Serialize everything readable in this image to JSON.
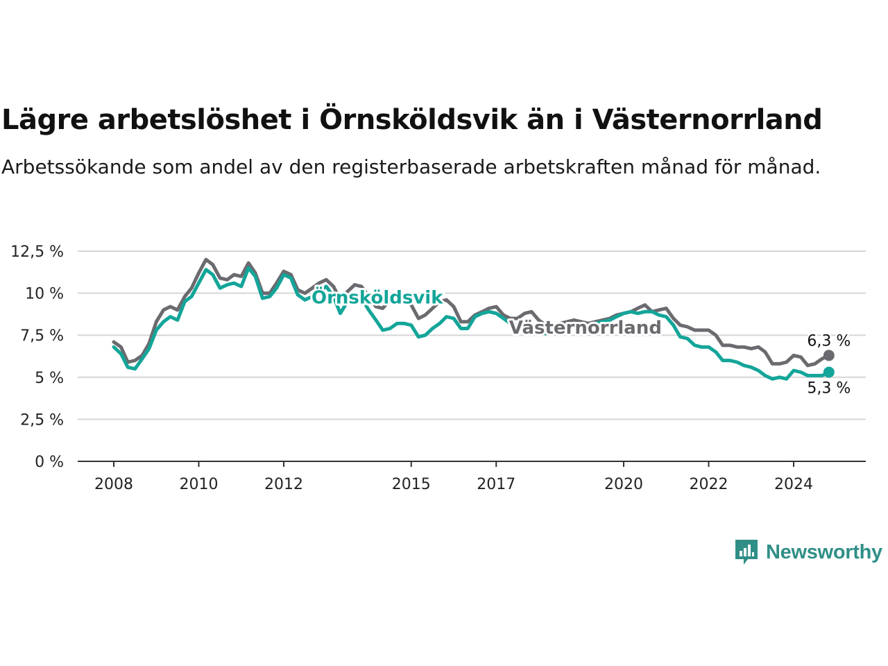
{
  "title": "Lägre arbetslöshet i Örnsköldsvik än i Västernorrland",
  "subtitle": "Arbetssökande som andel av den registerbaserade arbetskraften månad för månad.",
  "brand": {
    "name": "Newsworthy",
    "color": "#2f8f86"
  },
  "chart_data": {
    "type": "line",
    "y_ticks": [
      "0 %",
      "2,5 %",
      "5 %",
      "7,5 %",
      "10 %",
      "12,5 %"
    ],
    "y_tick_values": [
      0,
      2.5,
      5,
      7.5,
      10,
      12.5
    ],
    "x_ticks": [
      "2008",
      "2010",
      "2012",
      "2015",
      "2017",
      "2020",
      "2022",
      "2024"
    ],
    "x_tick_values": [
      2008,
      2010,
      2012,
      2015,
      2017,
      2020,
      2022,
      2024
    ],
    "ylim": [
      0,
      12.5
    ],
    "xlim": [
      2007.2,
      2025.7
    ],
    "grid": true,
    "series": [
      {
        "name": "Västernorrland",
        "color": "#6b6a6f",
        "end_label": "6,3 %",
        "points": [
          [
            2008.0,
            7.1
          ],
          [
            2008.17,
            6.8
          ],
          [
            2008.33,
            5.9
          ],
          [
            2008.5,
            6.0
          ],
          [
            2008.67,
            6.3
          ],
          [
            2008.83,
            7.0
          ],
          [
            2009.0,
            8.3
          ],
          [
            2009.17,
            9.0
          ],
          [
            2009.33,
            9.2
          ],
          [
            2009.5,
            9.0
          ],
          [
            2009.67,
            9.8
          ],
          [
            2009.83,
            10.3
          ],
          [
            2010.0,
            11.2
          ],
          [
            2010.17,
            12.0
          ],
          [
            2010.33,
            11.7
          ],
          [
            2010.5,
            10.9
          ],
          [
            2010.67,
            10.8
          ],
          [
            2010.83,
            11.1
          ],
          [
            2011.0,
            11.0
          ],
          [
            2011.17,
            11.8
          ],
          [
            2011.33,
            11.2
          ],
          [
            2011.5,
            10.0
          ],
          [
            2011.67,
            10.0
          ],
          [
            2011.83,
            10.6
          ],
          [
            2012.0,
            11.3
          ],
          [
            2012.17,
            11.1
          ],
          [
            2012.33,
            10.2
          ],
          [
            2012.5,
            10.0
          ],
          [
            2012.67,
            10.3
          ],
          [
            2012.83,
            10.6
          ],
          [
            2013.0,
            10.8
          ],
          [
            2013.17,
            10.4
          ],
          [
            2013.33,
            9.6
          ],
          [
            2013.5,
            10.1
          ],
          [
            2013.67,
            10.5
          ],
          [
            2013.83,
            10.4
          ],
          [
            2014.0,
            9.8
          ],
          [
            2014.17,
            9.2
          ],
          [
            2014.33,
            9.1
          ],
          [
            2014.5,
            9.6
          ],
          [
            2014.67,
            9.8
          ],
          [
            2014.83,
            9.6
          ],
          [
            2015.0,
            9.3
          ],
          [
            2015.17,
            8.5
          ],
          [
            2015.33,
            8.7
          ],
          [
            2015.5,
            9.1
          ],
          [
            2015.67,
            9.5
          ],
          [
            2015.83,
            9.6
          ],
          [
            2016.0,
            9.2
          ],
          [
            2016.17,
            8.3
          ],
          [
            2016.33,
            8.3
          ],
          [
            2016.5,
            8.7
          ],
          [
            2016.67,
            8.9
          ],
          [
            2016.83,
            9.1
          ],
          [
            2017.0,
            9.2
          ],
          [
            2017.17,
            8.7
          ],
          [
            2017.33,
            8.5
          ],
          [
            2017.5,
            8.5
          ],
          [
            2017.67,
            8.8
          ],
          [
            2017.83,
            8.9
          ],
          [
            2018.0,
            8.4
          ],
          [
            2018.17,
            8.1
          ],
          [
            2018.33,
            8.0
          ],
          [
            2018.5,
            8.2
          ],
          [
            2018.67,
            8.3
          ],
          [
            2018.83,
            8.4
          ],
          [
            2019.0,
            8.3
          ],
          [
            2019.17,
            8.2
          ],
          [
            2019.33,
            8.3
          ],
          [
            2019.5,
            8.4
          ],
          [
            2019.67,
            8.5
          ],
          [
            2019.83,
            8.7
          ],
          [
            2020.0,
            8.8
          ],
          [
            2020.17,
            8.9
          ],
          [
            2020.33,
            9.1
          ],
          [
            2020.5,
            9.3
          ],
          [
            2020.67,
            8.9
          ],
          [
            2020.83,
            9.0
          ],
          [
            2021.0,
            9.1
          ],
          [
            2021.17,
            8.5
          ],
          [
            2021.33,
            8.1
          ],
          [
            2021.5,
            8.0
          ],
          [
            2021.67,
            7.8
          ],
          [
            2021.83,
            7.8
          ],
          [
            2022.0,
            7.8
          ],
          [
            2022.17,
            7.5
          ],
          [
            2022.33,
            6.9
          ],
          [
            2022.5,
            6.9
          ],
          [
            2022.67,
            6.8
          ],
          [
            2022.83,
            6.8
          ],
          [
            2023.0,
            6.7
          ],
          [
            2023.17,
            6.8
          ],
          [
            2023.33,
            6.5
          ],
          [
            2023.5,
            5.8
          ],
          [
            2023.67,
            5.8
          ],
          [
            2023.83,
            5.9
          ],
          [
            2024.0,
            6.3
          ],
          [
            2024.17,
            6.2
          ],
          [
            2024.33,
            5.7
          ],
          [
            2024.5,
            5.8
          ],
          [
            2024.67,
            6.1
          ],
          [
            2024.83,
            6.3
          ]
        ]
      },
      {
        "name": "Örnsköldsvik",
        "color": "#13a599",
        "end_label": "5,3 %",
        "points": [
          [
            2008.0,
            6.8
          ],
          [
            2008.17,
            6.4
          ],
          [
            2008.33,
            5.6
          ],
          [
            2008.5,
            5.5
          ],
          [
            2008.67,
            6.1
          ],
          [
            2008.83,
            6.7
          ],
          [
            2009.0,
            7.8
          ],
          [
            2009.17,
            8.3
          ],
          [
            2009.33,
            8.6
          ],
          [
            2009.5,
            8.4
          ],
          [
            2009.67,
            9.5
          ],
          [
            2009.83,
            9.8
          ],
          [
            2010.0,
            10.6
          ],
          [
            2010.17,
            11.4
          ],
          [
            2010.33,
            11.1
          ],
          [
            2010.5,
            10.3
          ],
          [
            2010.67,
            10.5
          ],
          [
            2010.83,
            10.6
          ],
          [
            2011.0,
            10.4
          ],
          [
            2011.17,
            11.5
          ],
          [
            2011.33,
            11.0
          ],
          [
            2011.5,
            9.7
          ],
          [
            2011.67,
            9.8
          ],
          [
            2011.83,
            10.3
          ],
          [
            2012.0,
            11.1
          ],
          [
            2012.17,
            10.9
          ],
          [
            2012.33,
            9.9
          ],
          [
            2012.5,
            9.6
          ],
          [
            2012.67,
            9.8
          ],
          [
            2012.83,
            10.1
          ],
          [
            2013.0,
            10.4
          ],
          [
            2013.17,
            9.8
          ],
          [
            2013.33,
            8.8
          ],
          [
            2013.5,
            9.5
          ],
          [
            2013.67,
            9.9
          ],
          [
            2013.83,
            9.7
          ],
          [
            2014.0,
            9.0
          ],
          [
            2014.17,
            8.4
          ],
          [
            2014.33,
            7.8
          ],
          [
            2014.5,
            7.9
          ],
          [
            2014.67,
            8.2
          ],
          [
            2014.83,
            8.2
          ],
          [
            2015.0,
            8.1
          ],
          [
            2015.17,
            7.4
          ],
          [
            2015.33,
            7.5
          ],
          [
            2015.5,
            7.9
          ],
          [
            2015.67,
            8.2
          ],
          [
            2015.83,
            8.6
          ],
          [
            2016.0,
            8.5
          ],
          [
            2016.17,
            7.9
          ],
          [
            2016.33,
            7.9
          ],
          [
            2016.5,
            8.6
          ],
          [
            2016.67,
            8.8
          ],
          [
            2016.83,
            8.9
          ],
          [
            2017.0,
            8.8
          ],
          [
            2017.17,
            8.5
          ],
          [
            2017.33,
            8.2
          ],
          [
            2017.5,
            8.1
          ],
          [
            2017.67,
            8.0
          ],
          [
            2017.83,
            7.8
          ],
          [
            2018.0,
            7.7
          ],
          [
            2018.17,
            7.6
          ],
          [
            2018.33,
            7.8
          ],
          [
            2018.5,
            8.0
          ],
          [
            2018.67,
            8.1
          ],
          [
            2018.83,
            8.2
          ],
          [
            2019.0,
            8.1
          ],
          [
            2019.17,
            8.0
          ],
          [
            2019.33,
            8.2
          ],
          [
            2019.5,
            8.3
          ],
          [
            2019.67,
            8.4
          ],
          [
            2019.83,
            8.6
          ],
          [
            2020.0,
            8.8
          ],
          [
            2020.17,
            8.9
          ],
          [
            2020.33,
            8.8
          ],
          [
            2020.5,
            8.9
          ],
          [
            2020.67,
            8.9
          ],
          [
            2020.83,
            8.7
          ],
          [
            2021.0,
            8.6
          ],
          [
            2021.17,
            8.1
          ],
          [
            2021.33,
            7.4
          ],
          [
            2021.5,
            7.3
          ],
          [
            2021.67,
            6.9
          ],
          [
            2021.83,
            6.8
          ],
          [
            2022.0,
            6.8
          ],
          [
            2022.17,
            6.5
          ],
          [
            2022.33,
            6.0
          ],
          [
            2022.5,
            6.0
          ],
          [
            2022.67,
            5.9
          ],
          [
            2022.83,
            5.7
          ],
          [
            2023.0,
            5.6
          ],
          [
            2023.17,
            5.4
          ],
          [
            2023.33,
            5.1
          ],
          [
            2023.5,
            4.9
          ],
          [
            2023.67,
            5.0
          ],
          [
            2023.83,
            4.9
          ],
          [
            2024.0,
            5.4
          ],
          [
            2024.17,
            5.3
          ],
          [
            2024.33,
            5.1
          ],
          [
            2024.5,
            5.1
          ],
          [
            2024.67,
            5.1
          ],
          [
            2024.83,
            5.3
          ]
        ]
      }
    ],
    "series_labels": [
      {
        "series": "Örnsköldsvik",
        "at": [
          2014.2,
          9.8
        ]
      },
      {
        "series": "Västernorrland",
        "at": [
          2019.1,
          8.0
        ]
      }
    ]
  }
}
